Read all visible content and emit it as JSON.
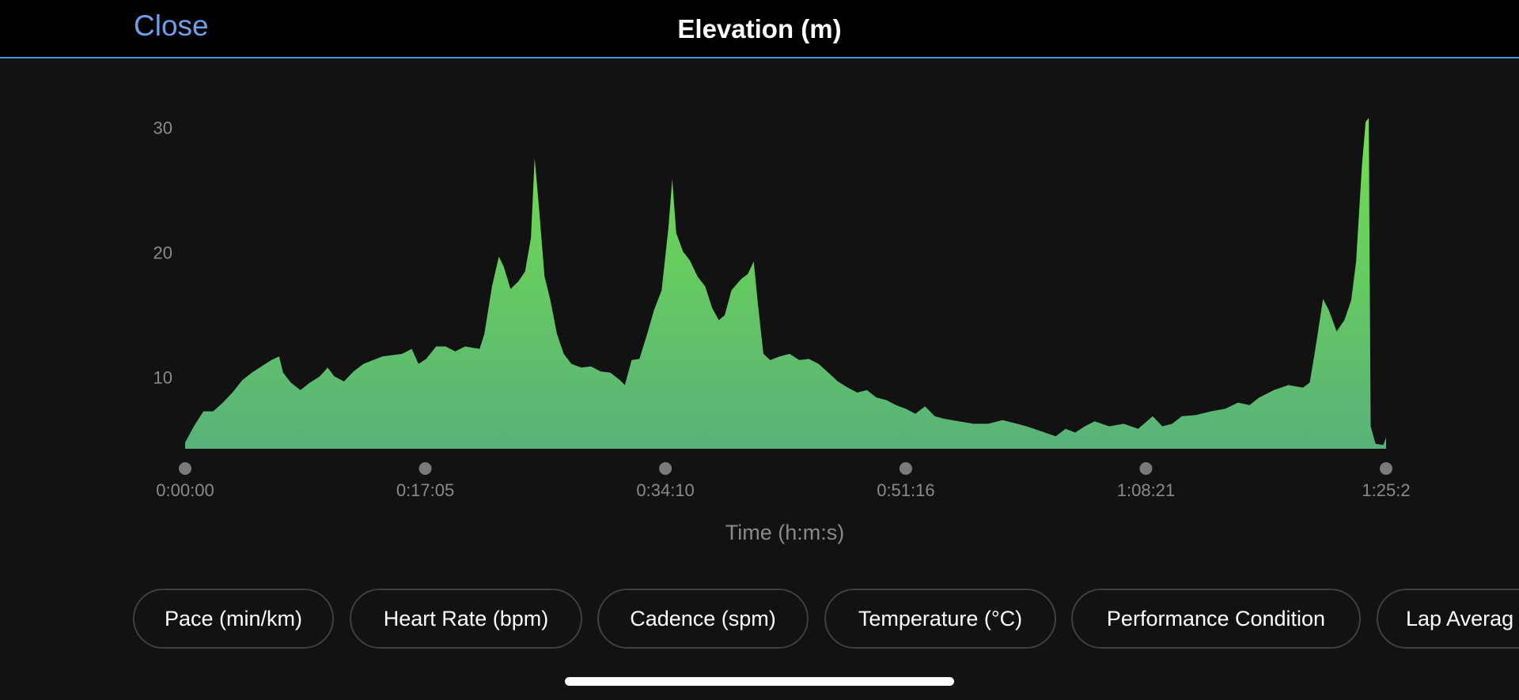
{
  "header": {
    "close": "Close",
    "title": "Elevation (m)"
  },
  "chart_data": {
    "type": "area",
    "x": [
      0,
      37,
      78,
      120,
      161,
      202,
      244,
      285,
      326,
      368,
      401,
      418,
      451,
      492,
      533,
      575,
      608,
      637,
      678,
      719,
      761,
      802,
      843,
      885,
      926,
      967,
      996,
      1029,
      1071,
      1112,
      1153,
      1195,
      1257,
      1277,
      1310,
      1339,
      1360,
      1389,
      1422,
      1451,
      1476,
      1492,
      1509,
      1534,
      1559,
      1587,
      1616,
      1649,
      1691,
      1732,
      1773,
      1815,
      1856,
      1877,
      1906,
      1939,
      1972,
      2001,
      2034,
      2063,
      2079,
      2096,
      2125,
      2154,
      2187,
      2220,
      2249,
      2278,
      2303,
      2332,
      2373,
      2402,
      2427,
      2443,
      2468,
      2497,
      2538,
      2580,
      2621,
      2662,
      2704,
      2745,
      2786,
      2828,
      2869,
      2910,
      2951,
      2993,
      3034,
      3076,
      3117,
      3158,
      3200,
      3241,
      3303,
      3365,
      3427,
      3489,
      3551,
      3592,
      3654,
      3716,
      3758,
      3799,
      3840,
      3882,
      3944,
      4006,
      4068,
      4130,
      4171,
      4213,
      4254,
      4316,
      4378,
      4440,
      4494,
      4543,
      4584,
      4647,
      4709,
      4771,
      4800,
      4824,
      4857,
      4882,
      4915,
      4948,
      4977,
      4998,
      5023,
      5039,
      5052,
      5060,
      5081,
      5114,
      5126
    ],
    "values": [
      4.9,
      6.2,
      7.4,
      7.4,
      8.1,
      8.9,
      9.9,
      10.5,
      11.0,
      11.5,
      11.8,
      10.5,
      9.7,
      9.1,
      9.7,
      10.2,
      10.9,
      10.2,
      9.8,
      10.6,
      11.2,
      11.5,
      11.8,
      11.9,
      12.0,
      12.4,
      11.2,
      11.6,
      12.6,
      12.6,
      12.2,
      12.6,
      12.4,
      13.6,
      17.4,
      19.8,
      19.0,
      17.2,
      17.8,
      18.6,
      21.3,
      27.7,
      24.0,
      18.2,
      16.3,
      13.6,
      12.0,
      11.2,
      10.9,
      11.0,
      10.6,
      10.5,
      9.9,
      9.5,
      11.5,
      11.6,
      13.6,
      15.5,
      17.1,
      22.1,
      26.0,
      21.7,
      20.2,
      19.5,
      18.2,
      17.4,
      15.7,
      14.7,
      15.1,
      17.1,
      18.0,
      18.4,
      19.4,
      16.3,
      12.0,
      11.5,
      11.8,
      12.0,
      11.5,
      11.6,
      11.2,
      10.5,
      9.8,
      9.3,
      8.9,
      9.1,
      8.5,
      8.3,
      7.9,
      7.6,
      7.2,
      7.8,
      7.0,
      6.8,
      6.6,
      6.4,
      6.4,
      6.7,
      6.4,
      6.2,
      5.8,
      5.4,
      6.0,
      5.7,
      6.2,
      6.6,
      6.2,
      6.4,
      6.0,
      7.0,
      6.2,
      6.4,
      7.0,
      7.1,
      7.4,
      7.6,
      8.1,
      7.9,
      8.5,
      9.1,
      9.5,
      9.3,
      9.7,
      12.4,
      16.4,
      15.5,
      13.8,
      14.7,
      16.3,
      19.4,
      27.1,
      30.6,
      30.9,
      6.2,
      4.8,
      4.7,
      5.3
    ],
    "xlim": [
      0,
      5126
    ],
    "xticks": [
      {
        "value": 0,
        "label": "0:00:00"
      },
      {
        "value": 1025,
        "label": "0:17:05"
      },
      {
        "value": 2050,
        "label": "0:34:10"
      },
      {
        "value": 3076,
        "label": "0:51:16"
      },
      {
        "value": 4101,
        "label": "1:08:21"
      },
      {
        "value": 5126,
        "label": "1:25:2"
      }
    ],
    "ylim": [
      4.4,
      32
    ],
    "yticks": [
      10,
      20,
      30
    ],
    "xlabel": "Time (h:m:s)",
    "gradient": [
      "#72e04a",
      "#58b27a"
    ],
    "grid": false
  },
  "buttons": [
    "Pace (min/km)",
    "Heart Rate (bpm)",
    "Cadence (spm)",
    "Temperature (°C)",
    "Performance Condition",
    "Lap Averag"
  ]
}
